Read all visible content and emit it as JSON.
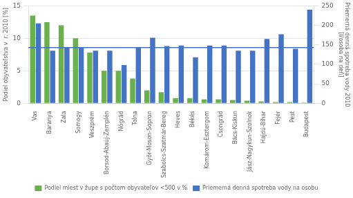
{
  "chart_data": {
    "type": "bar",
    "categories": [
      "Vas",
      "Baranya",
      "Zala",
      "Somogy",
      "Veszprém",
      "Borsod-Abaúj-Zemplén",
      "Nógrád",
      "Tolna",
      "Győr-Moson-Sopron",
      "Szabolcs-Szatmár-Bereg",
      "Heves",
      "Békés",
      "Komárom-Esztergom",
      "Csongrád",
      "Bács-Kiskun",
      "Jász-Nagykun-Szolnok",
      "Hajdú-Bihar",
      "Fejér",
      "Pest",
      "Budapest"
    ],
    "series": [
      {
        "name": "Podiel miest v župe s počtom obyvateľov <500 v %",
        "color": "#6ab04c",
        "axis": "y",
        "values": [
          13.5,
          12.5,
          12.0,
          10.0,
          7.8,
          5.0,
          5.0,
          3.8,
          2.0,
          1.7,
          0.8,
          0.8,
          0.6,
          0.6,
          0.5,
          0.4,
          0.3,
          0.2,
          0.2,
          0.1
        ]
      },
      {
        "name": "Priemerná denná spotreba vody na osobu",
        "color": "#4472c4",
        "axis": "y2",
        "values": [
          205,
          135,
          143,
          143,
          135,
          135,
          98,
          143,
          168,
          147,
          148,
          118,
          148,
          148,
          135,
          135,
          165,
          177,
          140,
          240
        ]
      }
    ],
    "hlines": [
      {
        "value": 143,
        "axis": "y2",
        "color": "#4472c4"
      }
    ],
    "ylabel": "Podiel obyvateľstva v  r. 2010 [%]",
    "y2label": "Priemerná denná spotreba vody 2010\n[l/osoba na deň]",
    "ylim": [
      0,
      15
    ],
    "yticks": [
      0,
      5,
      10,
      15
    ],
    "y2lim": [
      0,
      250
    ],
    "y2ticks": [
      0,
      50,
      100,
      150,
      200,
      250
    ],
    "grid": true,
    "legend": "bottom"
  }
}
